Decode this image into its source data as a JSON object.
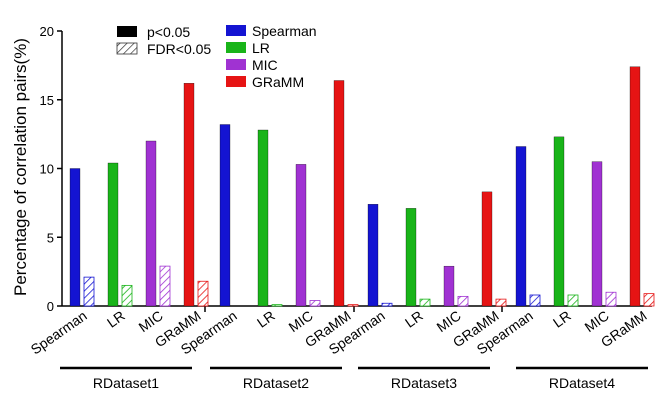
{
  "chart_data": {
    "type": "bar",
    "ylabel": "Percentage of correlation pairs(%)",
    "ylim": [
      0,
      20
    ],
    "yticks": [
      0,
      5,
      10,
      15,
      20
    ],
    "groups": [
      "RDataset1",
      "RDataset2",
      "RDataset3",
      "RDataset4"
    ],
    "methods": [
      "Spearman",
      "LR",
      "MIC",
      "GRaMM"
    ],
    "colors": {
      "Spearman": "#1414d2",
      "LR": "#19b419",
      "MIC": "#a032d2",
      "GRaMM": "#e61414"
    },
    "series": [
      {
        "name": "p<0.05",
        "pattern": "solid",
        "values": [
          [
            10.0,
            10.4,
            12.0,
            16.2
          ],
          [
            13.2,
            12.8,
            10.3,
            16.4
          ],
          [
            7.4,
            7.1,
            2.9,
            8.3
          ],
          [
            11.6,
            12.3,
            10.5,
            17.4
          ]
        ]
      },
      {
        "name": "FDR<0.05",
        "pattern": "hatched",
        "values": [
          [
            2.1,
            1.5,
            2.9,
            1.8
          ],
          [
            0.0,
            0.1,
            0.4,
            0.1
          ],
          [
            0.2,
            0.5,
            0.7,
            0.5
          ],
          [
            0.8,
            0.8,
            1.0,
            0.9
          ]
        ]
      }
    ],
    "legend": {
      "significance": [
        "p<0.05",
        "FDR<0.05"
      ],
      "methods": [
        "Spearman",
        "LR",
        "MIC",
        "GRaMM"
      ]
    }
  }
}
